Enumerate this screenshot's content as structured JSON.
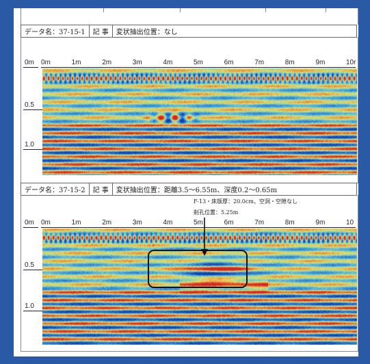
{
  "panel1": {
    "data_label": "データ名：37-15-1",
    "kiji_label": "記 事",
    "remark": "変状抽出位置：なし",
    "depth_label_0": "0m",
    "depth_labels": [
      "0.5",
      "1.0"
    ],
    "distance_labels": [
      "0m",
      "1m",
      "2m",
      "3m",
      "4m",
      "5m",
      "6m",
      "7m",
      "8m",
      "9m",
      "10r"
    ]
  },
  "panel2": {
    "data_label": "データ名：37-15-2",
    "kiji_label": "記 事",
    "remark": "変状抽出位置：距離3.5～6.55m、深度0.2～0.65m",
    "annotation_1": "F-13・床版厚：20.0cm、空洞・空隙なし",
    "annotation_2": "削孔位置：5.25m",
    "depth_label_0": "0m",
    "depth_labels": [
      "0.5",
      "1.0"
    ],
    "distance_labels": [
      "0m",
      "1m",
      "2m",
      "3m",
      "4m",
      "5m",
      "6m",
      "7m",
      "8m",
      "9m",
      "10"
    ]
  },
  "colors": {
    "background": "#2a5aa6",
    "marker": "#111111"
  }
}
